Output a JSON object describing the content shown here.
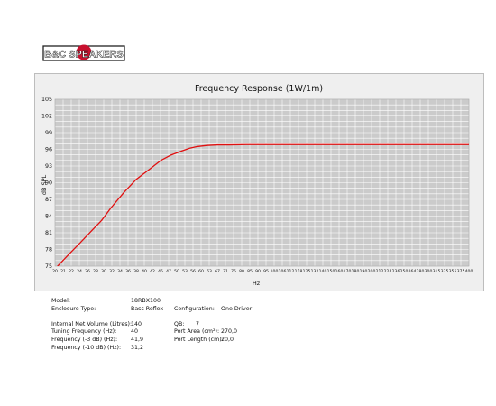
{
  "brand": {
    "logo_text": "B&C SPEAKERS"
  },
  "colors": {
    "curve": "#e01010",
    "plot_bg": "#cbcbcb",
    "grid": "#ffffff",
    "panel_bg": "#efefef"
  },
  "chart_data": {
    "type": "line",
    "title": "Frequency Response (1W/1m)",
    "xlabel": "Hz",
    "ylabel": "dB SPL",
    "x_scale": "log",
    "xlim": [
      20,
      400
    ],
    "ylim": [
      75,
      105
    ],
    "grid": true,
    "x_ticks": [
      "20",
      "21",
      "22",
      "24",
      "26",
      "28",
      "30",
      "32",
      "34",
      "36",
      "38",
      "40",
      "42",
      "45",
      "47",
      "50",
      "53",
      "56",
      "60",
      "63",
      "67",
      "71",
      "75",
      "80",
      "85",
      "90",
      "95",
      "100",
      "106",
      "112",
      "118",
      "125",
      "132",
      "140",
      "150",
      "160",
      "170",
      "180",
      "190",
      "200",
      "212",
      "224",
      "236",
      "250",
      "264",
      "280",
      "300",
      "315",
      "335",
      "355",
      "375",
      "400"
    ],
    "y_ticks": [
      "75",
      "78",
      "81",
      "84",
      "87",
      "90",
      "93",
      "96",
      "99",
      "102",
      "105"
    ],
    "series": [
      {
        "x": [
          20,
          22,
          24,
          26,
          28,
          30,
          33,
          36,
          40,
          43,
          46,
          50,
          53,
          56,
          60,
          65,
          70,
          80,
          90,
          100,
          150,
          200,
          300,
          400
        ],
        "y": [
          74.5,
          77.0,
          79.2,
          81.3,
          83.2,
          85.5,
          88.3,
          90.6,
          92.6,
          94.0,
          94.9,
          95.7,
          96.2,
          96.5,
          96.7,
          96.8,
          96.8,
          96.85,
          96.85,
          96.85,
          96.85,
          96.85,
          96.85,
          96.85
        ]
      }
    ]
  },
  "specs": {
    "model_label": "Model:",
    "model_value": "18RBX100",
    "enclosure_label": "Enclosure Type:",
    "enclosure_value": "Bass Reflex",
    "config_label": "Configuration:",
    "config_value": "One Driver",
    "volume_label": "Internal Net Volume (Litres):",
    "volume_value": "140",
    "tuning_label": "Tuning Frequency (Hz):",
    "tuning_value": "40",
    "f3_label": "Frequency (-3 dB) (Hz):",
    "f3_value": "41,9",
    "f10_label": "Frequency (-10 dB) (Hz):",
    "f10_value": "31,2",
    "qb_label": "QB:",
    "qb_value": "7",
    "port_area_label": "Port Area (cm²):",
    "port_area_value": "270,0",
    "port_length_label": "Port Length (cm):",
    "port_length_value": "20,0"
  }
}
